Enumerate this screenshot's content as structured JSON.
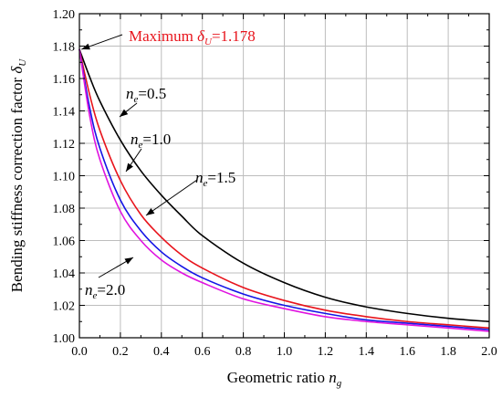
{
  "chart_data": {
    "type": "line",
    "title": "",
    "xlabel": {
      "main": "Geometric ratio ",
      "sym": "n",
      "sub": "g"
    },
    "ylabel": {
      "main": "Bending stiffness correction factor ",
      "sym": "δ",
      "sub": "U"
    },
    "xlim": [
      0.0,
      2.0
    ],
    "ylim": [
      1.0,
      1.2
    ],
    "xticks": [
      "0.0",
      "0.2",
      "0.4",
      "0.6",
      "0.8",
      "1.0",
      "1.2",
      "1.4",
      "1.6",
      "1.8",
      "2.0"
    ],
    "yticks": [
      "1.00",
      "1.02",
      "1.04",
      "1.06",
      "1.08",
      "1.10",
      "1.12",
      "1.14",
      "1.16",
      "1.18",
      "1.20"
    ],
    "grid": true,
    "series": [
      {
        "label_sym": "n",
        "label_sub": "e",
        "label_val": "=0.5",
        "color": "#000000",
        "x": [
          0.0,
          0.05,
          0.1,
          0.2,
          0.3,
          0.4,
          0.5,
          0.6,
          0.8,
          1.0,
          1.2,
          1.4,
          1.6,
          1.8,
          2.0
        ],
        "y": [
          1.178,
          1.161,
          1.146,
          1.122,
          1.103,
          1.088,
          1.075,
          1.063,
          1.046,
          1.034,
          1.025,
          1.019,
          1.015,
          1.012,
          1.01
        ]
      },
      {
        "label_sym": "n",
        "label_sub": "e",
        "label_val": "=1.0",
        "color": "#e8141c",
        "x": [
          0.0,
          0.05,
          0.1,
          0.2,
          0.3,
          0.4,
          0.5,
          0.6,
          0.8,
          1.0,
          1.2,
          1.4,
          1.6,
          1.8,
          2.0
        ],
        "y": [
          1.178,
          1.15,
          1.128,
          1.097,
          1.076,
          1.062,
          1.051,
          1.043,
          1.031,
          1.023,
          1.017,
          1.013,
          1.01,
          1.008,
          1.006
        ]
      },
      {
        "label_sym": "n",
        "label_sub": "e",
        "label_val": "=1.5",
        "color": "#1414e6",
        "x": [
          0.0,
          0.05,
          0.1,
          0.2,
          0.3,
          0.4,
          0.5,
          0.6,
          0.8,
          1.0,
          1.2,
          1.4,
          1.6,
          1.8,
          2.0
        ],
        "y": [
          1.178,
          1.142,
          1.117,
          1.085,
          1.066,
          1.053,
          1.044,
          1.037,
          1.027,
          1.02,
          1.015,
          1.011,
          1.009,
          1.007,
          1.005
        ]
      },
      {
        "label_sym": "n",
        "label_sub": "e",
        "label_val": "=2.0",
        "color": "#e014e0",
        "x": [
          0.0,
          0.05,
          0.1,
          0.2,
          0.3,
          0.4,
          0.5,
          0.6,
          0.8,
          1.0,
          1.2,
          1.4,
          1.6,
          1.8,
          2.0
        ],
        "y": [
          1.178,
          1.137,
          1.11,
          1.078,
          1.06,
          1.048,
          1.04,
          1.034,
          1.024,
          1.018,
          1.013,
          1.01,
          1.008,
          1.006,
          1.004
        ]
      }
    ],
    "annotations": {
      "maximum": {
        "main": "Maximum ",
        "sym": "δ",
        "sub": "U",
        "val": "=1.178",
        "color": "#e8141c"
      }
    }
  }
}
